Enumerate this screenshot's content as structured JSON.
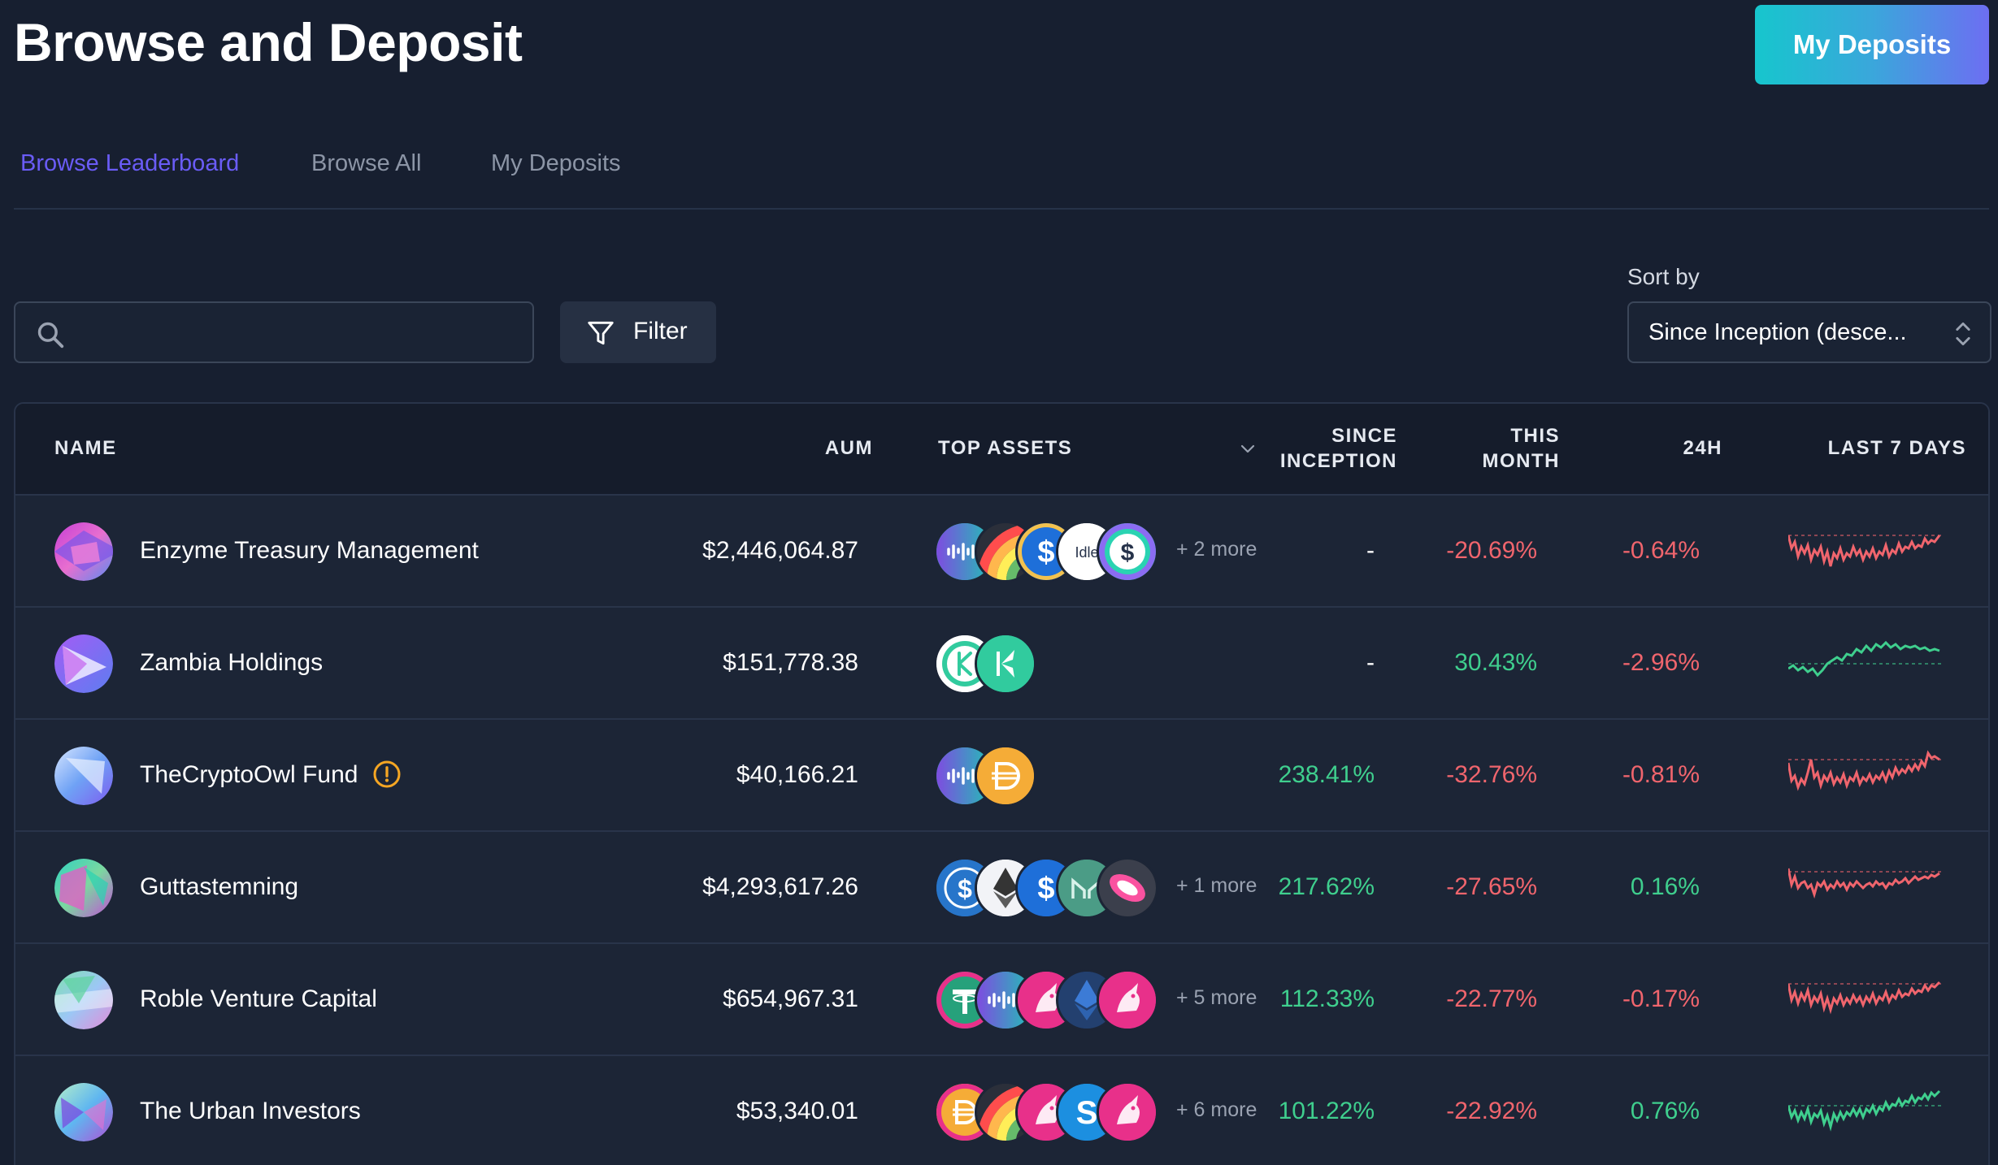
{
  "header": {
    "title": "Browse and Deposit",
    "my_deposits_button": "My Deposits"
  },
  "tabs": [
    {
      "label": "Browse Leaderboard",
      "active": true
    },
    {
      "label": "Browse All",
      "active": false
    },
    {
      "label": "My Deposits",
      "active": false
    }
  ],
  "search": {
    "value": "",
    "placeholder": "",
    "icon": "search-icon"
  },
  "filter": {
    "label": "Filter",
    "icon": "funnel-icon"
  },
  "sort": {
    "label": "Sort by",
    "value": "Since Inception (desce..."
  },
  "table": {
    "columns": {
      "name": "NAME",
      "aum": "AUM",
      "top_assets": "TOP ASSETS",
      "since_inception_l1": "SINCE",
      "since_inception_l2": "INCEPTION",
      "this_month_l1": "THIS",
      "this_month_l2": "MONTH",
      "h24": "24H",
      "last7": "LAST 7 DAYS"
    },
    "rows": [
      {
        "name": "Enzyme Treasury Management",
        "aum": "$2,446,064.87",
        "more": "+ 2 more",
        "since_inception": "-",
        "this_month": "-20.69%",
        "h24": "-0.64%",
        "trend": "negative",
        "warning": false
      },
      {
        "name": "Zambia Holdings",
        "aum": "$151,778.38",
        "more": "",
        "since_inception": "-",
        "this_month": "30.43%",
        "h24": "-2.96%",
        "trend": "positive",
        "warning": false
      },
      {
        "name": "TheCryptoOwl Fund",
        "aum": "$40,166.21",
        "more": "",
        "since_inception": "238.41%",
        "this_month": "-32.76%",
        "h24": "-0.81%",
        "trend": "negative",
        "warning": true
      },
      {
        "name": "Guttastemning",
        "aum": "$4,293,617.26",
        "more": "+ 1 more",
        "since_inception": "217.62%",
        "this_month": "-27.65%",
        "h24": "0.16%",
        "trend": "negative",
        "warning": false
      },
      {
        "name": "Roble Venture Capital",
        "aum": "$654,967.31",
        "more": "+ 5 more",
        "since_inception": "112.33%",
        "this_month": "-22.77%",
        "h24": "-0.17%",
        "trend": "negative",
        "warning": false
      },
      {
        "name": "The Urban Investors",
        "aum": "$53,340.01",
        "more": "+ 6 more",
        "since_inception": "101.22%",
        "this_month": "-22.92%",
        "h24": "0.76%",
        "trend": "positive",
        "warning": false
      }
    ]
  },
  "colors": {
    "background": "#171f30",
    "accent": "#6a5cf6",
    "positive": "#3fcf8e",
    "negative": "#f0656d",
    "button_gradient_start": "#16c6cd",
    "button_gradient_end": "#6d6ef2"
  },
  "coin_labels": {
    "idle": "Idle"
  }
}
